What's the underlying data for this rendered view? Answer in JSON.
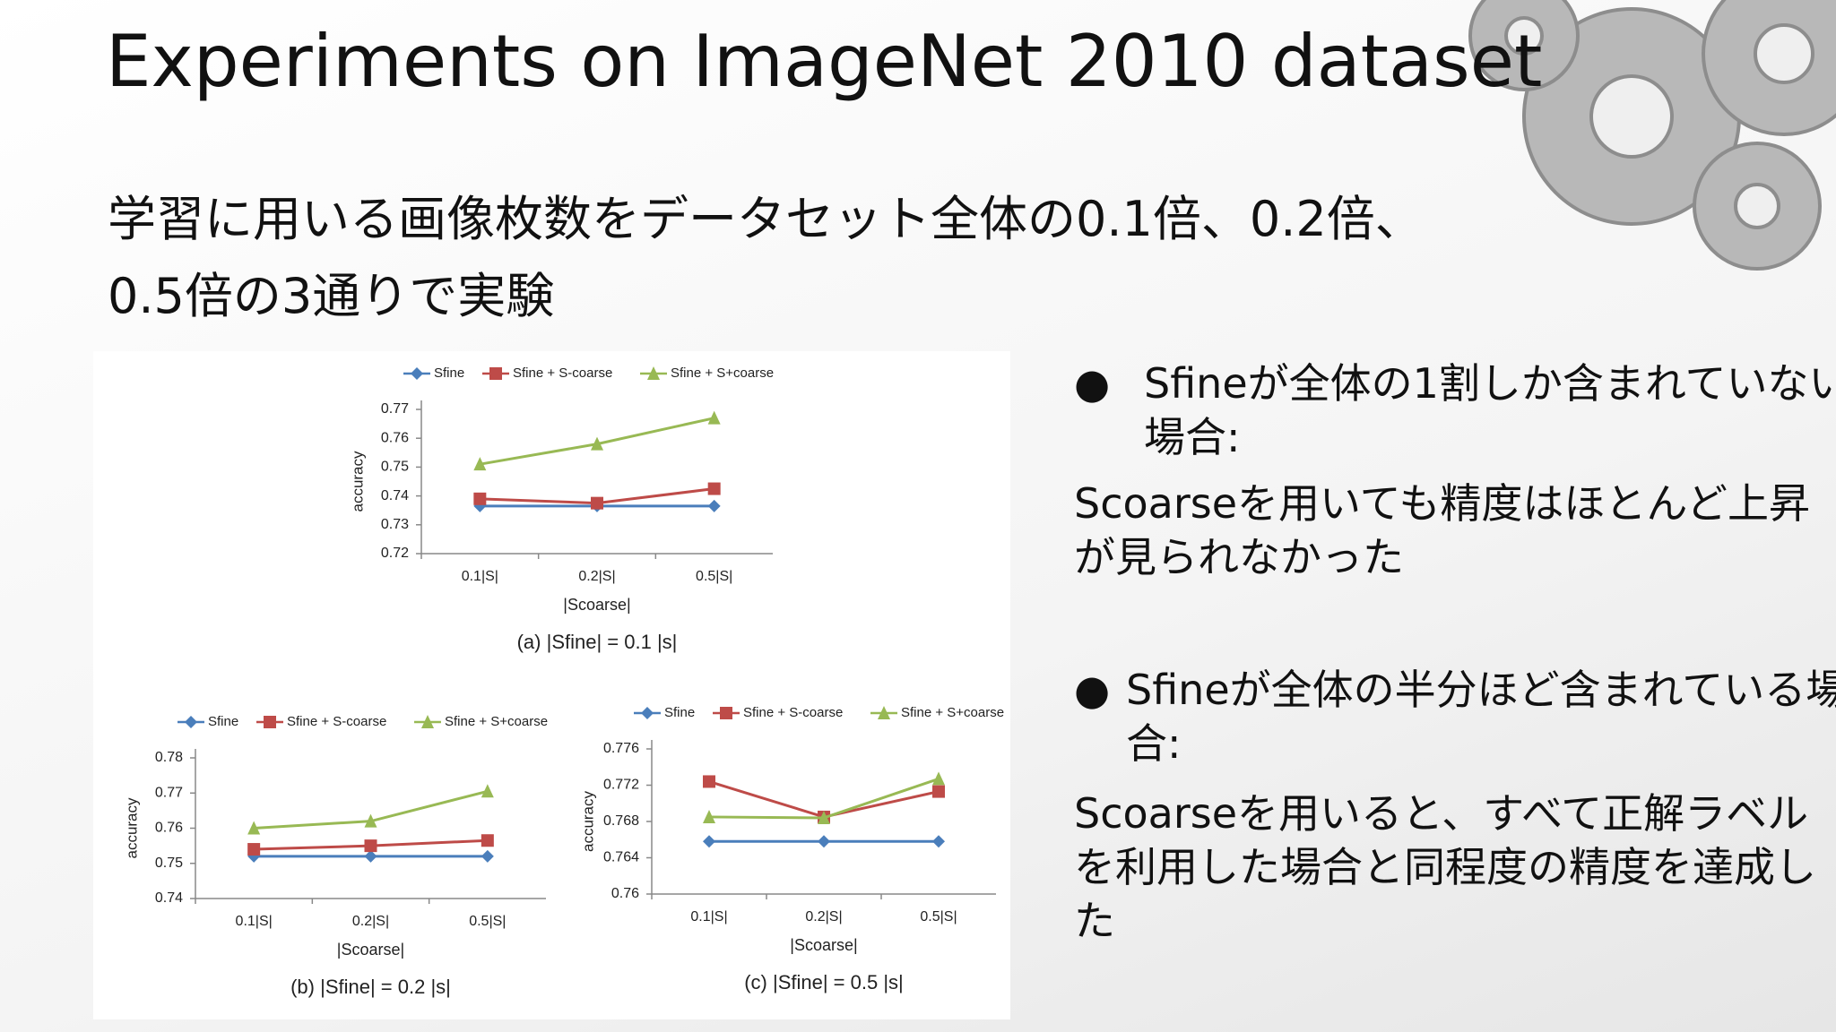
{
  "title": "Experiments on ImageNet 2010 dataset",
  "subtitle": [
    "学習に用いる画像枚数をデータセット全体の0.1倍、0.2倍、",
    "0.5倍の3通りで実験"
  ],
  "notes": [
    {
      "heading": "Sfineが全体の1割しか含まれていない場合:",
      "body": "Scoarseを用いても精度はほとんど上昇が見られなかった"
    },
    {
      "heading": "Sfineが全体の半分ほど含まれている場合:",
      "body": "Scoarseを用いると、すべて正解ラベルを利用した場合と同程度の精度を達成した"
    }
  ],
  "chart_data": [
    {
      "type": "line",
      "caption": "(a) |Sfine| = 0.1 |s|",
      "xlabel": "|Scoarse|",
      "ylabel": "accuracy",
      "categories": [
        "0.1|S|",
        "0.2|S|",
        "0.5|S|"
      ],
      "series": [
        {
          "name": "Sfine",
          "color": "#4a7ebb",
          "marker": "diamond",
          "values": [
            0.7365,
            0.7365,
            0.7365
          ]
        },
        {
          "name": "Sfine + S-coarse",
          "color": "#be4b48",
          "marker": "square",
          "values": [
            0.739,
            0.7375,
            0.7425
          ]
        },
        {
          "name": "Sfine + S+coarse",
          "color": "#98b954",
          "marker": "triangle",
          "values": [
            0.751,
            0.758,
            0.767
          ]
        }
      ],
      "ylim": [
        0.72,
        0.77
      ],
      "yticks": [
        0.72,
        0.73,
        0.74,
        0.75,
        0.76,
        0.77
      ]
    },
    {
      "type": "line",
      "caption": "(b) |Sfine| = 0.2 |s|",
      "xlabel": "|Scoarse|",
      "ylabel": "accuracy",
      "categories": [
        "0.1|S|",
        "0.2|S|",
        "0.5|S|"
      ],
      "series": [
        {
          "name": "Sfine",
          "color": "#4a7ebb",
          "marker": "diamond",
          "values": [
            0.752,
            0.752,
            0.752
          ]
        },
        {
          "name": "Sfine + S-coarse",
          "color": "#be4b48",
          "marker": "square",
          "values": [
            0.754,
            0.755,
            0.7565
          ]
        },
        {
          "name": "Sfine + S+coarse",
          "color": "#98b954",
          "marker": "triangle",
          "values": [
            0.76,
            0.762,
            0.7705
          ]
        }
      ],
      "ylim": [
        0.74,
        0.78
      ],
      "yticks": [
        0.74,
        0.75,
        0.76,
        0.77,
        0.78
      ]
    },
    {
      "type": "line",
      "caption": "(c) |Sfine| = 0.5 |s|",
      "xlabel": "|Scoarse|",
      "ylabel": "accuracy",
      "categories": [
        "0.1|S|",
        "0.2|S|",
        "0.5|S|"
      ],
      "series": [
        {
          "name": "Sfine",
          "color": "#4a7ebb",
          "marker": "diamond",
          "values": [
            0.7658,
            0.7658,
            0.7658
          ]
        },
        {
          "name": "Sfine + S-coarse",
          "color": "#be4b48",
          "marker": "square",
          "values": [
            0.7724,
            0.7685,
            0.7713
          ]
        },
        {
          "name": "Sfine + S+coarse",
          "color": "#98b954",
          "marker": "triangle",
          "values": [
            0.7685,
            0.7684,
            0.7727
          ]
        }
      ],
      "ylim": [
        0.76,
        0.776
      ],
      "yticks": [
        0.76,
        0.764,
        0.768,
        0.772,
        0.776
      ]
    }
  ]
}
